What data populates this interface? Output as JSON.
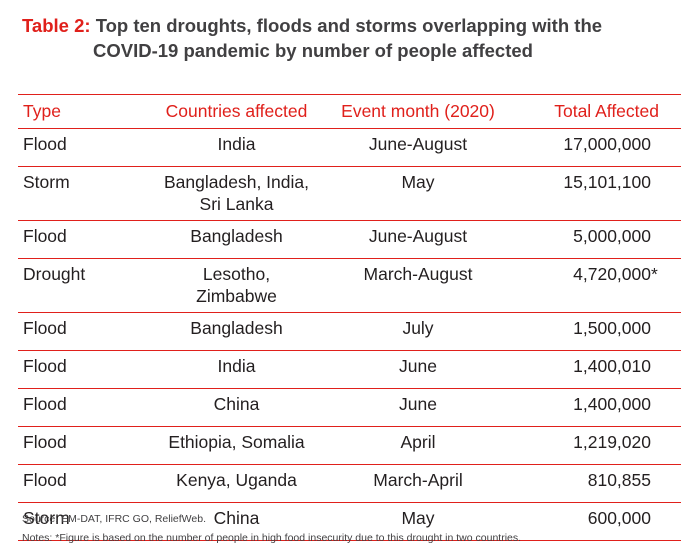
{
  "title": {
    "label": "Table 2:",
    "line1": "Top ten droughts, floods and storms overlapping with the",
    "line2": "COVID-19 pandemic by number of people affected"
  },
  "table": {
    "headers": [
      "Type",
      "Countries affected",
      "Event month (2020)",
      "Total Affected"
    ],
    "rows": [
      {
        "type": "Flood",
        "countries": [
          "India"
        ],
        "month": "June-August",
        "total": "17,000,000",
        "mark": ""
      },
      {
        "type": "Storm",
        "countries": [
          "Bangladesh, India,",
          "Sri Lanka"
        ],
        "month": "May",
        "total": "15,101,100",
        "mark": ""
      },
      {
        "type": "Flood",
        "countries": [
          "Bangladesh"
        ],
        "month": "June-August",
        "total": "5,000,000",
        "mark": ""
      },
      {
        "type": "Drought",
        "countries": [
          "Lesotho,",
          "Zimbabwe"
        ],
        "month": "March-August",
        "total": "4,720,000",
        "mark": "*"
      },
      {
        "type": "Flood",
        "countries": [
          "Bangladesh"
        ],
        "month": "July",
        "total": "1,500,000",
        "mark": ""
      },
      {
        "type": "Flood",
        "countries": [
          "India"
        ],
        "month": "June",
        "total": "1,400,010",
        "mark": ""
      },
      {
        "type": "Flood",
        "countries": [
          "China"
        ],
        "month": "June",
        "total": "1,400,000",
        "mark": ""
      },
      {
        "type": "Flood",
        "countries": [
          "Ethiopia, Somalia"
        ],
        "month": "April",
        "total": "1,219,020",
        "mark": ""
      },
      {
        "type": "Flood",
        "countries": [
          "Kenya, Uganda"
        ],
        "month": "March-April",
        "total": "810,855",
        "mark": ""
      },
      {
        "type": "Storm",
        "countries": [
          "China"
        ],
        "month": "May",
        "total": "600,000",
        "mark": ""
      }
    ]
  },
  "source": "Source: EM-DAT, IFRC GO, ReliefWeb.",
  "notes": "Notes: *Figure is based on the number of people in high food insecurity due to this drought in two countries.",
  "colors": {
    "accent": "#e0201b",
    "title_text": "#414042"
  }
}
